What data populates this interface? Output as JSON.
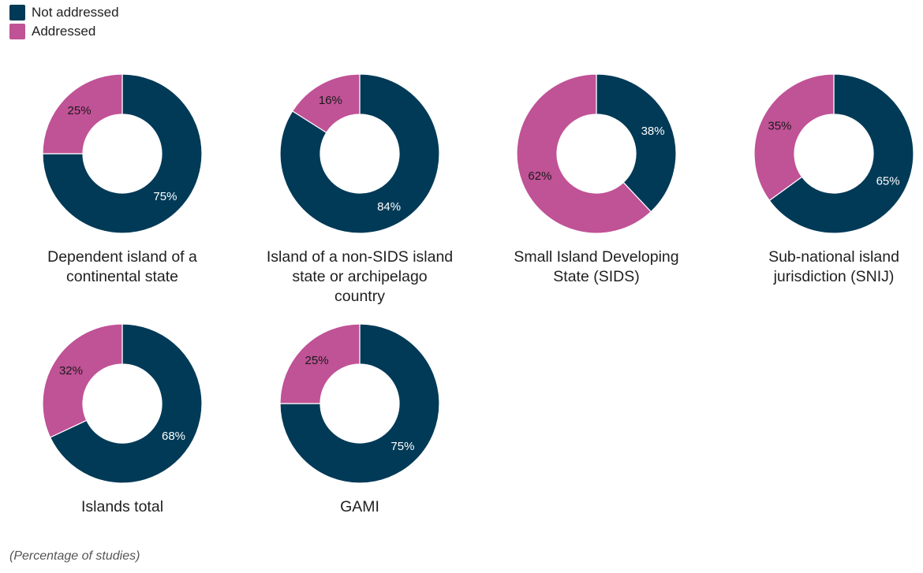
{
  "legend": {
    "items": [
      {
        "label": "Not addressed",
        "color": "#003a57"
      },
      {
        "label": "Addressed",
        "color": "#c05296"
      }
    ]
  },
  "footnote": "(Percentage of studies)",
  "chart_data": [
    {
      "type": "pie",
      "title_lines": [
        "Dependent island of a",
        "continental state"
      ],
      "slices": [
        {
          "name": "Not addressed",
          "value": 75,
          "label": "75%"
        },
        {
          "name": "Addressed",
          "value": 25,
          "label": "25%"
        }
      ]
    },
    {
      "type": "pie",
      "title_lines": [
        "Island of a non-SIDS island",
        "state or archipelago",
        "country"
      ],
      "slices": [
        {
          "name": "Not addressed",
          "value": 84,
          "label": "84%"
        },
        {
          "name": "Addressed",
          "value": 16,
          "label": "16%"
        }
      ]
    },
    {
      "type": "pie",
      "title_lines": [
        "Small Island Developing",
        "State (SIDS)"
      ],
      "slices": [
        {
          "name": "Not addressed",
          "value": 38,
          "label": "38%"
        },
        {
          "name": "Addressed",
          "value": 62,
          "label": "62%"
        }
      ]
    },
    {
      "type": "pie",
      "title_lines": [
        "Sub-national island",
        "jurisdiction (SNIJ)"
      ],
      "slices": [
        {
          "name": "Not addressed",
          "value": 65,
          "label": "65%"
        },
        {
          "name": "Addressed",
          "value": 35,
          "label": "35%"
        }
      ]
    },
    {
      "type": "pie",
      "title_lines": [
        "Islands total"
      ],
      "slices": [
        {
          "name": "Not addressed",
          "value": 68,
          "label": "68%"
        },
        {
          "name": "Addressed",
          "value": 32,
          "label": "32%"
        }
      ]
    },
    {
      "type": "pie",
      "title_lines": [
        "GAMI"
      ],
      "slices": [
        {
          "name": "Not addressed",
          "value": 75,
          "label": "75%"
        },
        {
          "name": "Addressed",
          "value": 25,
          "label": "25%"
        }
      ]
    }
  ]
}
